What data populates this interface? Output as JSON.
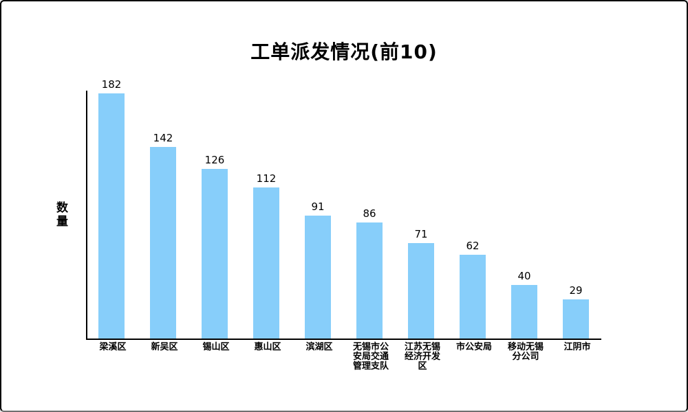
{
  "window": {
    "background": "#ffffff",
    "border_color": "#000000"
  },
  "chart_data": {
    "type": "bar",
    "title": "工单派发情况(前10)",
    "xlabel": "",
    "ylabel": "数量",
    "categories": [
      "梁溪区",
      "新吴区",
      "锡山区",
      "惠山区",
      "滨湖区",
      "无锡市公安局交通管理支队",
      "江苏无锡经济开发区",
      "市公安局",
      "移动无锡分公司",
      "江阴市"
    ],
    "values": [
      182,
      142,
      126,
      112,
      91,
      86,
      71,
      62,
      40,
      29
    ],
    "ylim": [
      0,
      182
    ],
    "bar_color": "#87CEFA",
    "axis_color": "#000000",
    "text_color": "#000000",
    "grid": false,
    "legend": "none",
    "data_labels": true,
    "y_ticks": "none"
  }
}
